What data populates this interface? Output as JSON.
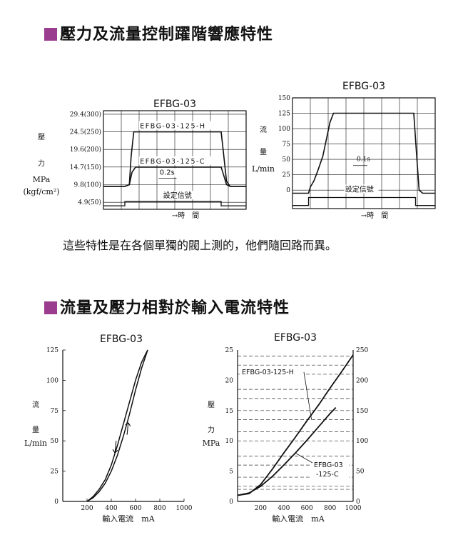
{
  "colors": {
    "accent": "#9b3d8f",
    "ink": "#111111",
    "dashed": "#333333"
  },
  "sections": {
    "response_title": "壓力及流量控制躍階響應特性",
    "response_note": "這些特性是在各個單獨的閥上測的，他們隨回路而異。",
    "current_title": "流量及壓力相對於輸入電流特性"
  },
  "chart_data": [
    {
      "type": "line",
      "title": "EFBG-03",
      "ylabel": [
        "壓",
        "力",
        "MPa",
        "(kgf/cm²)"
      ],
      "xlabel": "→時　間",
      "y_ticks": [
        "29.4(300)",
        "24.5(250)",
        "19.6(200)",
        "14.7(150)",
        "9.8(100)",
        "4.9(50)"
      ],
      "y_values": [
        300,
        250,
        200,
        150,
        100,
        50
      ],
      "ylim": [
        30,
        310
      ],
      "grid": true,
      "time_marker": "0.2s",
      "signal_label": "設定信號",
      "series": [
        {
          "name": "EFBG-03-125-H",
          "level": 250,
          "base": 95,
          "x": [
            0,
            1.2,
            1.45,
            1.55,
            1.7,
            6.6,
            6.75,
            6.9,
            7.1,
            8.0
          ],
          "y": [
            95,
            95,
            100,
            180,
            250,
            250,
            180,
            110,
            95,
            95
          ]
        },
        {
          "name": "EFBG-03-125-C",
          "level": 150,
          "base": 95,
          "x": [
            0,
            1.2,
            1.45,
            1.6,
            1.8,
            6.6,
            6.75,
            6.9,
            7.1,
            8.0
          ],
          "y": [
            95,
            95,
            100,
            135,
            150,
            150,
            125,
            100,
            95,
            95
          ]
        },
        {
          "name": "設定信號",
          "x": [
            0,
            1.2,
            1.2,
            6.6,
            6.6,
            8.0
          ],
          "y": [
            40,
            40,
            52,
            52,
            40,
            40
          ]
        }
      ]
    },
    {
      "type": "line",
      "title": "EFBG-03",
      "ylabel": [
        "流",
        "量",
        "L/min"
      ],
      "xlabel": "→時　間",
      "y_ticks": [
        "150",
        "125",
        "100",
        "75",
        "50",
        "25",
        "0"
      ],
      "y_values": [
        150,
        125,
        100,
        75,
        50,
        25,
        0
      ],
      "ylim": [
        -30,
        150
      ],
      "grid": true,
      "time_marker": "0.1s",
      "signal_label": "設定信號",
      "series": [
        {
          "name": "flow",
          "x": [
            0,
            0.9,
            1.0,
            1.2,
            1.4,
            1.7,
            2.1,
            2.3,
            6.8,
            6.95,
            7.1,
            7.3,
            8.0
          ],
          "y": [
            -5,
            -5,
            5,
            15,
            30,
            55,
            110,
            125,
            125,
            60,
            0,
            -5,
            -5
          ]
        },
        {
          "name": "設定信號",
          "x": [
            0,
            0.9,
            0.9,
            6.9,
            6.9,
            8.0
          ],
          "y": [
            -25,
            -25,
            -12,
            -12,
            -25,
            -25
          ]
        }
      ]
    },
    {
      "type": "line",
      "title": "EFBG-03",
      "xlabel": "輸入電流　mA",
      "ylabel": [
        "流",
        "量",
        "L/min"
      ],
      "x_ticks": [
        "0",
        "200",
        "400",
        "600",
        "800",
        "1000"
      ],
      "y_ticks": [
        "125",
        "100",
        "75",
        "50",
        "25",
        "0"
      ],
      "xlim": [
        0,
        1000
      ],
      "ylim": [
        0,
        125
      ],
      "grid": false,
      "series": [
        {
          "name": "increasing",
          "x": [
            200,
            250,
            300,
            350,
            400,
            450,
            500,
            550,
            600,
            650,
            700
          ],
          "y": [
            0,
            4,
            10,
            18,
            30,
            46,
            64,
            82,
            100,
            115,
            125
          ]
        },
        {
          "name": "decreasing",
          "x": [
            200,
            250,
            300,
            350,
            400,
            450,
            500,
            550,
            600,
            650,
            700
          ],
          "y": [
            0,
            3,
            8,
            15,
            25,
            38,
            54,
            72,
            92,
            110,
            125
          ]
        }
      ]
    },
    {
      "type": "line",
      "title": "EFBG-03",
      "xlabel": "輸入電流　mA",
      "ylabel_left": [
        "壓",
        "力",
        "MPa"
      ],
      "left_ticks": [
        "25",
        "20",
        "15",
        "10",
        "5",
        "0"
      ],
      "right_ticks": [
        "250",
        "200",
        "150",
        "100",
        "50",
        "0"
      ],
      "x_ticks": [
        "0",
        "200",
        "400",
        "600",
        "800",
        "1000"
      ],
      "xlim": [
        0,
        1000
      ],
      "ylim": [
        0,
        25
      ],
      "grid": "dashed",
      "series": [
        {
          "name": "EFBG-03-125-H",
          "x": [
            0,
            100,
            200,
            300,
            400,
            500,
            600,
            700,
            800,
            900,
            1000
          ],
          "y": [
            1.0,
            1.3,
            2.8,
            5.3,
            8.0,
            10.6,
            13.3,
            15.9,
            18.7,
            21.4,
            24.2
          ]
        },
        {
          "name": "EFBG-03-125-C",
          "x": [
            0,
            100,
            200,
            300,
            400,
            500,
            600,
            700,
            800,
            850
          ],
          "y": [
            1.0,
            1.4,
            2.5,
            4.1,
            6.0,
            8.0,
            10.1,
            12.3,
            14.5,
            15.5
          ]
        }
      ],
      "annotations": [
        "EFBG-03-125-H",
        "EFBG-03",
        "-125-C"
      ]
    }
  ]
}
